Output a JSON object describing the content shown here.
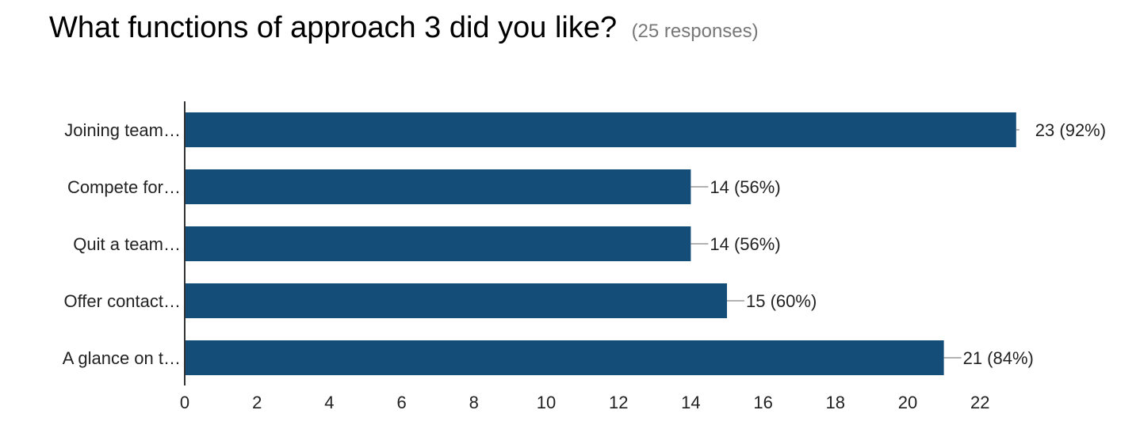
{
  "header": {
    "title": "What functions of approach 3 did you like?",
    "responses": "(25 responses)"
  },
  "colors": {
    "bar": "#144d78",
    "axis": "#333333",
    "leader": "#999999"
  },
  "chart_data": {
    "type": "bar",
    "orientation": "horizontal",
    "categories": [
      "Joining team…",
      "Compete for…",
      "Quit a team…",
      "Offer contact…",
      "A glance on t…"
    ],
    "values": [
      23,
      14,
      14,
      15,
      21
    ],
    "data_labels": [
      "23 (92%)",
      "14 (56%)",
      "14 (56%)",
      "15 (60%)",
      "21 (84%)"
    ],
    "x_ticks": [
      0,
      2,
      4,
      6,
      8,
      10,
      12,
      14,
      16,
      18,
      20,
      22
    ],
    "xlim": [
      0,
      23
    ],
    "grid": false,
    "legend": "none"
  }
}
